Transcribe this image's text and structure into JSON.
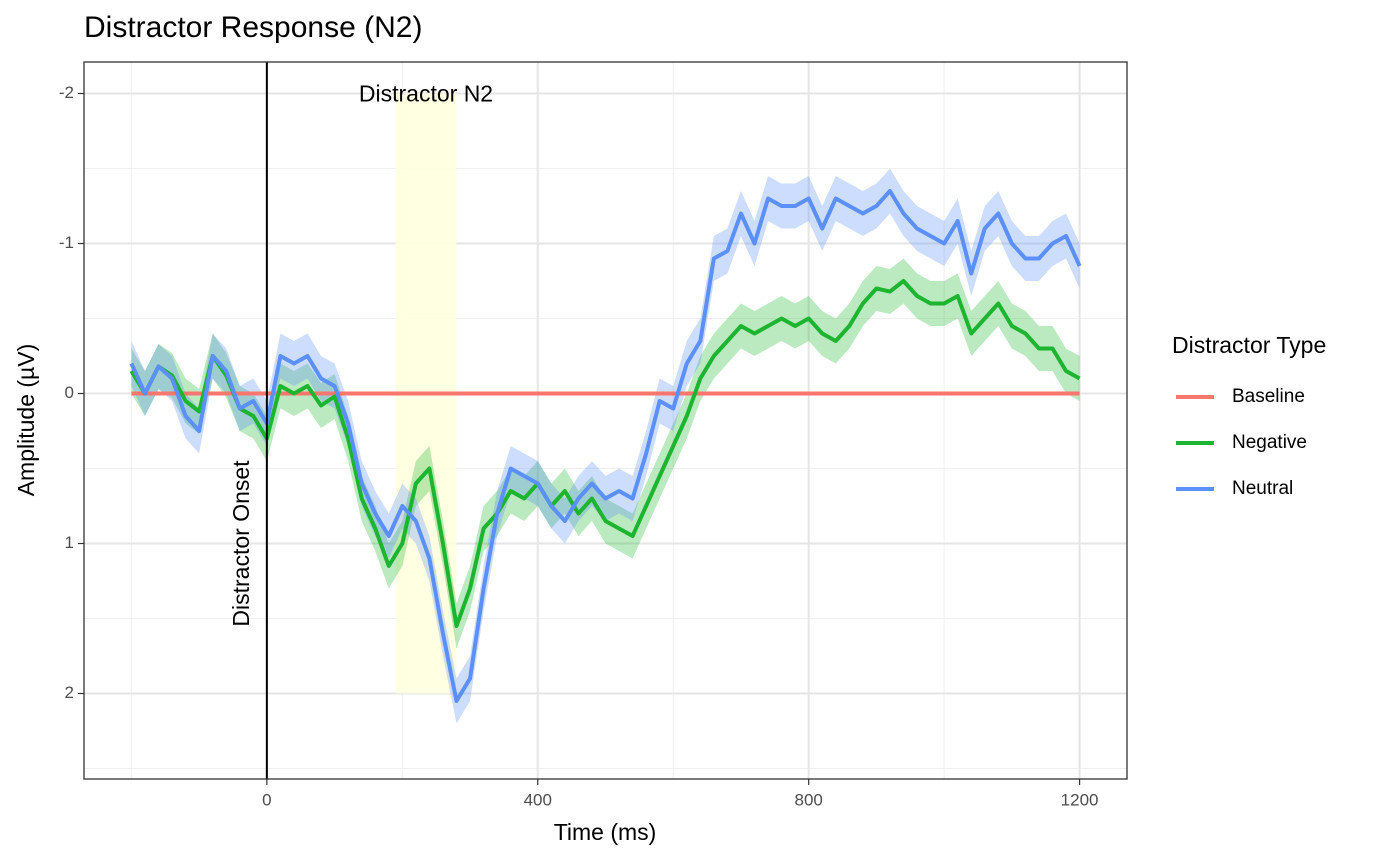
{
  "chart_data": {
    "type": "line",
    "title": "Distractor Response (N2)",
    "xlabel": "Time (ms)",
    "ylabel": "Amplitude (µV)",
    "legend_title": "Distractor Type",
    "legend": "right",
    "grid": true,
    "y_reversed": true,
    "xlim": [
      -270,
      1270
    ],
    "ylim": [
      -2.21,
      2.57
    ],
    "xticks": [
      0,
      400,
      800,
      1200
    ],
    "yticks": [
      -2,
      -1,
      0,
      1,
      2
    ],
    "x_minor_ticks": [
      -200,
      200,
      600,
      1000
    ],
    "y_minor_ticks": [
      -1.5,
      -0.5,
      0.5,
      1.5,
      2.5
    ],
    "x": [
      -200,
      -180,
      -160,
      -140,
      -120,
      -100,
      -80,
      -60,
      -40,
      -20,
      0,
      20,
      40,
      60,
      80,
      100,
      120,
      140,
      160,
      180,
      200,
      220,
      240,
      260,
      280,
      300,
      320,
      340,
      360,
      380,
      400,
      420,
      440,
      460,
      480,
      500,
      520,
      540,
      560,
      580,
      600,
      620,
      640,
      660,
      680,
      700,
      720,
      740,
      760,
      780,
      800,
      820,
      840,
      860,
      880,
      900,
      920,
      940,
      960,
      980,
      1000,
      1020,
      1040,
      1060,
      1080,
      1100,
      1120,
      1140,
      1160,
      1180,
      1200
    ],
    "series": [
      {
        "name": "Baseline",
        "color": "#F8766D",
        "values": [
          0,
          0,
          0,
          0,
          0,
          0,
          0,
          0,
          0,
          0,
          0,
          0,
          0,
          0,
          0,
          0,
          0,
          0,
          0,
          0,
          0,
          0,
          0,
          0,
          0,
          0,
          0,
          0,
          0,
          0,
          0,
          0,
          0,
          0,
          0,
          0,
          0,
          0,
          0,
          0,
          0,
          0,
          0,
          0,
          0,
          0,
          0,
          0,
          0,
          0,
          0,
          0,
          0,
          0,
          0,
          0,
          0,
          0,
          0,
          0,
          0,
          0,
          0,
          0,
          0,
          0,
          0,
          0,
          0,
          0,
          0
        ]
      },
      {
        "name": "Negative",
        "color": "#1DB530",
        "se": 0.15,
        "values": [
          -0.15,
          0.0,
          -0.18,
          -0.12,
          0.05,
          0.12,
          -0.25,
          -0.12,
          0.1,
          0.15,
          0.3,
          -0.05,
          0.0,
          -0.05,
          0.08,
          0.02,
          0.3,
          0.7,
          0.9,
          1.15,
          1.0,
          0.6,
          0.5,
          1.0,
          1.55,
          1.3,
          0.9,
          0.8,
          0.65,
          0.7,
          0.6,
          0.75,
          0.65,
          0.8,
          0.7,
          0.85,
          0.9,
          0.95,
          0.75,
          0.55,
          0.35,
          0.15,
          -0.1,
          -0.25,
          -0.35,
          -0.45,
          -0.4,
          -0.45,
          -0.5,
          -0.45,
          -0.5,
          -0.4,
          -0.35,
          -0.45,
          -0.6,
          -0.7,
          -0.68,
          -0.75,
          -0.65,
          -0.6,
          -0.6,
          -0.65,
          -0.4,
          -0.5,
          -0.6,
          -0.45,
          -0.4,
          -0.3,
          -0.3,
          -0.15,
          -0.1
        ]
      },
      {
        "name": "Neutral",
        "color": "#5B8FF9",
        "se": 0.15,
        "values": [
          -0.2,
          0.0,
          -0.18,
          -0.1,
          0.15,
          0.25,
          -0.25,
          -0.15,
          0.1,
          0.05,
          0.2,
          -0.25,
          -0.2,
          -0.25,
          -0.1,
          -0.05,
          0.2,
          0.6,
          0.8,
          0.95,
          0.75,
          0.85,
          1.1,
          1.6,
          2.05,
          1.9,
          1.3,
          0.8,
          0.5,
          0.55,
          0.6,
          0.75,
          0.85,
          0.7,
          0.6,
          0.7,
          0.65,
          0.7,
          0.4,
          0.05,
          0.1,
          -0.2,
          -0.35,
          -0.9,
          -0.95,
          -1.2,
          -1.0,
          -1.3,
          -1.25,
          -1.25,
          -1.3,
          -1.1,
          -1.3,
          -1.25,
          -1.2,
          -1.25,
          -1.35,
          -1.2,
          -1.1,
          -1.05,
          -1.0,
          -1.15,
          -0.8,
          -1.1,
          -1.2,
          -1.0,
          -0.9,
          -0.9,
          -1.0,
          -1.05,
          -0.85
        ]
      }
    ],
    "vline": {
      "x": 0
    },
    "shade": {
      "xmin": 190,
      "xmax": 280,
      "ymin": -2,
      "ymax": 2,
      "color": "#FFFFDD"
    },
    "annotations": [
      {
        "text": "Distractor Onset",
        "x": 0,
        "y": 1.0,
        "rotate": -90
      },
      {
        "text": "Distractor N2",
        "x": 235,
        "y": -2
      }
    ]
  }
}
